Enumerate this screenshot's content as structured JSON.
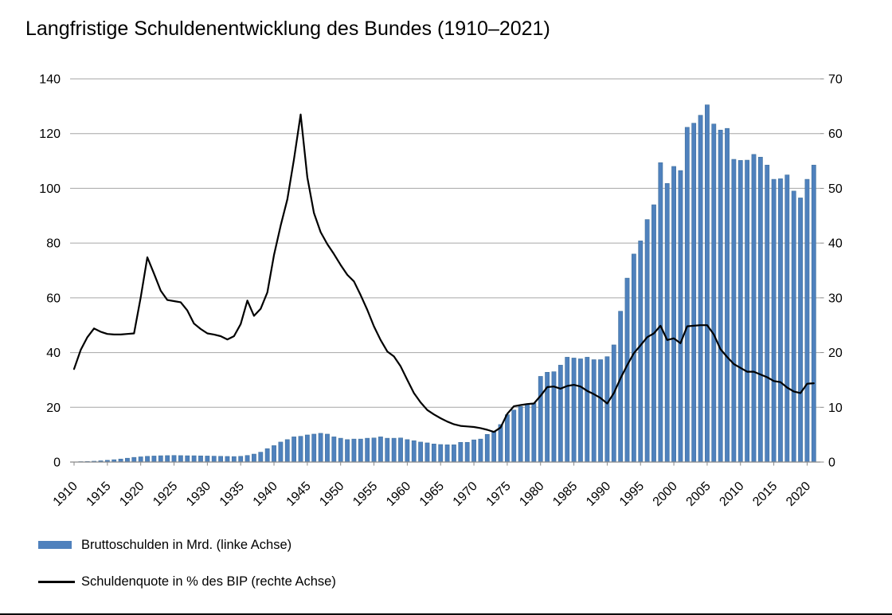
{
  "title": "Langfristige Schuldenentwicklung des Bundes (1910–2021)",
  "colors": {
    "bar_fill": "#4f81bd",
    "bar_stroke": "#41719c",
    "line": "#000000",
    "grid": "#a6a6a6",
    "axis": "#898989",
    "text": "#000000",
    "background": "#ffffff"
  },
  "legend": {
    "bars_label": "Bruttoschulden in Mrd. (linke Achse)",
    "line_label": "Schuldenquote in % des BIP (rechte Achse)"
  },
  "chart_data": {
    "type": "bar+line combo, dual axis",
    "title": "Langfristige Schuldenentwicklung des Bundes (1910–2021)",
    "x_range": [
      1910,
      2021
    ],
    "x_tick_labels": [
      1910,
      1915,
      1920,
      1925,
      1930,
      1935,
      1940,
      1945,
      1950,
      1955,
      1960,
      1965,
      1970,
      1975,
      1980,
      1985,
      1990,
      1995,
      2000,
      2005,
      2010,
      2015,
      2020
    ],
    "axis_left": {
      "label": "Bruttoschulden in Mrd.",
      "min": 0,
      "max": 140,
      "step": 20,
      "ticks": [
        0,
        20,
        40,
        60,
        80,
        100,
        120,
        140
      ]
    },
    "axis_right": {
      "label": "Schuldenquote in % des BIP",
      "min": 0,
      "max": 70,
      "step": 10,
      "ticks": [
        0,
        10,
        20,
        30,
        40,
        50,
        60,
        70
      ]
    },
    "grid": "horizontal only",
    "legend_position": "bottom-left",
    "years": [
      1910,
      1911,
      1912,
      1913,
      1914,
      1915,
      1916,
      1917,
      1918,
      1919,
      1920,
      1921,
      1922,
      1923,
      1924,
      1925,
      1926,
      1927,
      1928,
      1929,
      1930,
      1931,
      1932,
      1933,
      1934,
      1935,
      1936,
      1937,
      1938,
      1939,
      1940,
      1941,
      1942,
      1943,
      1944,
      1945,
      1946,
      1947,
      1948,
      1949,
      1950,
      1951,
      1952,
      1953,
      1954,
      1955,
      1956,
      1957,
      1958,
      1959,
      1960,
      1961,
      1962,
      1963,
      1964,
      1965,
      1966,
      1967,
      1968,
      1969,
      1970,
      1971,
      1972,
      1973,
      1974,
      1975,
      1976,
      1977,
      1978,
      1979,
      1980,
      1981,
      1982,
      1983,
      1984,
      1985,
      1986,
      1987,
      1988,
      1989,
      1990,
      1991,
      1992,
      1993,
      1994,
      1995,
      1996,
      1997,
      1998,
      1999,
      2000,
      2001,
      2002,
      2003,
      2004,
      2005,
      2006,
      2007,
      2008,
      2009,
      2010,
      2011,
      2012,
      2013,
      2014,
      2015,
      2016,
      2017,
      2018,
      2019,
      2020,
      2021
    ],
    "series": [
      {
        "name": "Bruttoschulden in Mrd. (linke Achse)",
        "type": "bar",
        "axis": "left",
        "values": [
          0.1,
          0.15,
          0.2,
          0.3,
          0.45,
          0.65,
          0.85,
          1.1,
          1.4,
          1.7,
          1.9,
          2.1,
          2.2,
          2.3,
          2.35,
          2.4,
          2.35,
          2.3,
          2.3,
          2.25,
          2.2,
          2.15,
          2.1,
          2.05,
          2.0,
          2.1,
          2.4,
          2.9,
          3.6,
          4.9,
          6.0,
          7.3,
          8.2,
          9.2,
          9.4,
          9.9,
          10.2,
          10.5,
          10.2,
          9.2,
          8.7,
          8.2,
          8.4,
          8.4,
          8.7,
          8.8,
          9.2,
          8.7,
          8.7,
          8.8,
          8.2,
          7.8,
          7.3,
          7.0,
          6.6,
          6.4,
          6.3,
          6.3,
          7.2,
          7.2,
          8.1,
          8.4,
          10.1,
          11.0,
          13.7,
          17.3,
          19.0,
          20.3,
          21.2,
          21.5,
          31.3,
          32.8,
          33.0,
          35.4,
          38.3,
          38.0,
          37.7,
          38.3,
          37.4,
          37.4,
          38.5,
          42.8,
          55.1,
          67.2,
          76.0,
          80.8,
          88.6,
          94.0,
          109.4,
          101.8,
          108.0,
          106.5,
          122.3,
          123.8,
          126.7,
          130.5,
          123.5,
          121.3,
          121.9,
          110.6,
          110.2,
          110.3,
          112.4,
          111.4,
          108.5,
          103.3,
          103.5,
          104.9,
          99.0,
          96.5,
          103.3,
          108.5
        ]
      },
      {
        "name": "Schuldenquote in % des BIP (rechte Achse)",
        "type": "line",
        "axis": "right",
        "values": [
          17.0,
          20.5,
          22.8,
          24.4,
          23.8,
          23.4,
          23.3,
          23.3,
          23.4,
          23.5,
          30.1,
          37.4,
          34.4,
          31.3,
          29.6,
          29.4,
          29.2,
          27.7,
          25.3,
          24.3,
          23.5,
          23.3,
          23.0,
          22.4,
          23.0,
          25.2,
          29.5,
          26.7,
          28.0,
          31.0,
          37.8,
          43.2,
          48.0,
          55.3,
          63.5,
          52.0,
          45.5,
          42.0,
          39.8,
          38.0,
          36.0,
          34.2,
          33.0,
          30.5,
          27.8,
          24.8,
          22.3,
          20.2,
          19.3,
          17.5,
          15.0,
          12.6,
          10.9,
          9.5,
          8.7,
          8.0,
          7.4,
          6.9,
          6.6,
          6.5,
          6.4,
          6.2,
          5.9,
          5.5,
          6.3,
          8.8,
          10.2,
          10.4,
          10.6,
          10.7,
          12.1,
          13.7,
          13.8,
          13.4,
          13.9,
          14.1,
          13.8,
          13.0,
          12.4,
          11.7,
          10.7,
          12.6,
          15.3,
          17.7,
          19.9,
          21.3,
          22.8,
          23.5,
          24.9,
          22.3,
          22.6,
          21.7,
          24.8,
          24.9,
          25.0,
          25.0,
          23.3,
          20.6,
          19.2,
          17.9,
          17.2,
          16.5,
          16.5,
          16.0,
          15.5,
          14.8,
          14.6,
          13.6,
          12.9,
          12.6,
          14.3,
          14.4
        ]
      }
    ]
  }
}
